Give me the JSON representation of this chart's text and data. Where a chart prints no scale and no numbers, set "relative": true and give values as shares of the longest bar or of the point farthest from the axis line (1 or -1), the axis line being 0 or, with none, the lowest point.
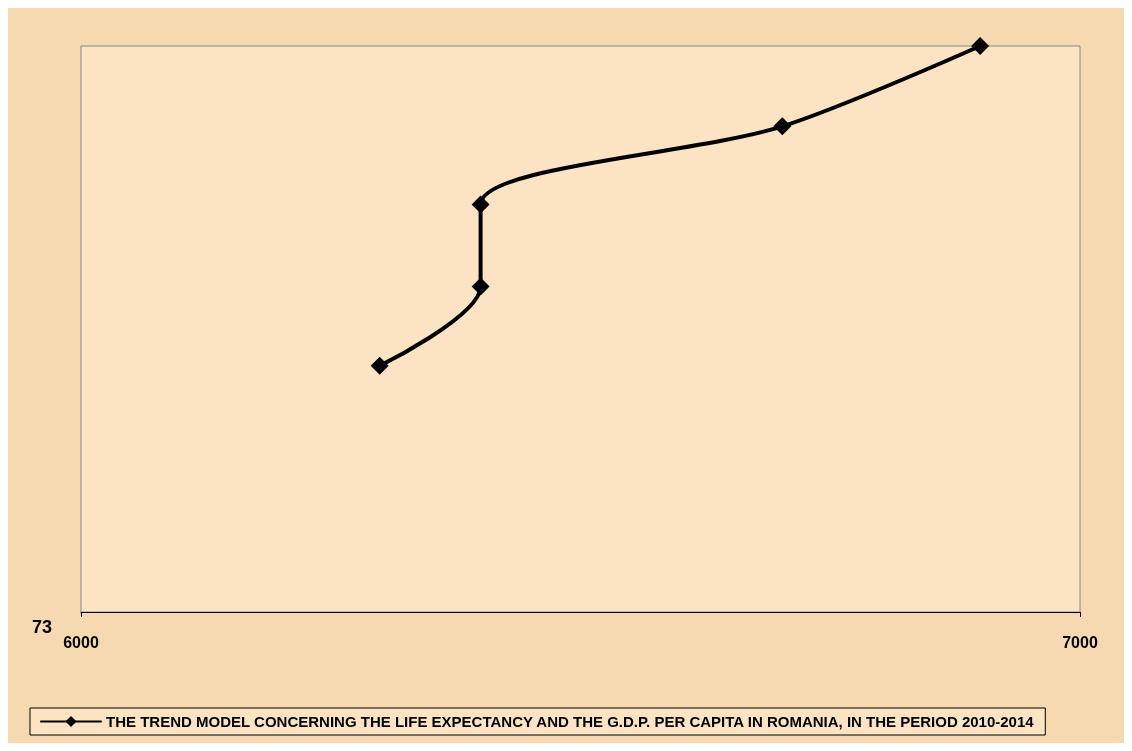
{
  "chart_data": {
    "type": "line",
    "x": [
      6299,
      6400,
      6400,
      6702,
      6900
    ],
    "series": [
      {
        "name": "THE TREND MODEL CONCERNING THE LIFE EXPECTANCY AND THE G.D.P. PER CAPITA IN ROMANIA, IN THE PERIOD 2010-2014",
        "color": "#000000",
        "values": [
          0.435,
          0.575,
          0.72,
          0.858,
          1
        ]
      }
    ],
    "relative": true,
    "xlim": [
      6000,
      7000
    ],
    "xticks": [
      6000,
      7000
    ],
    "annotations": [
      "73"
    ],
    "marker": "diamond",
    "line_style": "solid",
    "grid": false,
    "legend": "bottom"
  }
}
